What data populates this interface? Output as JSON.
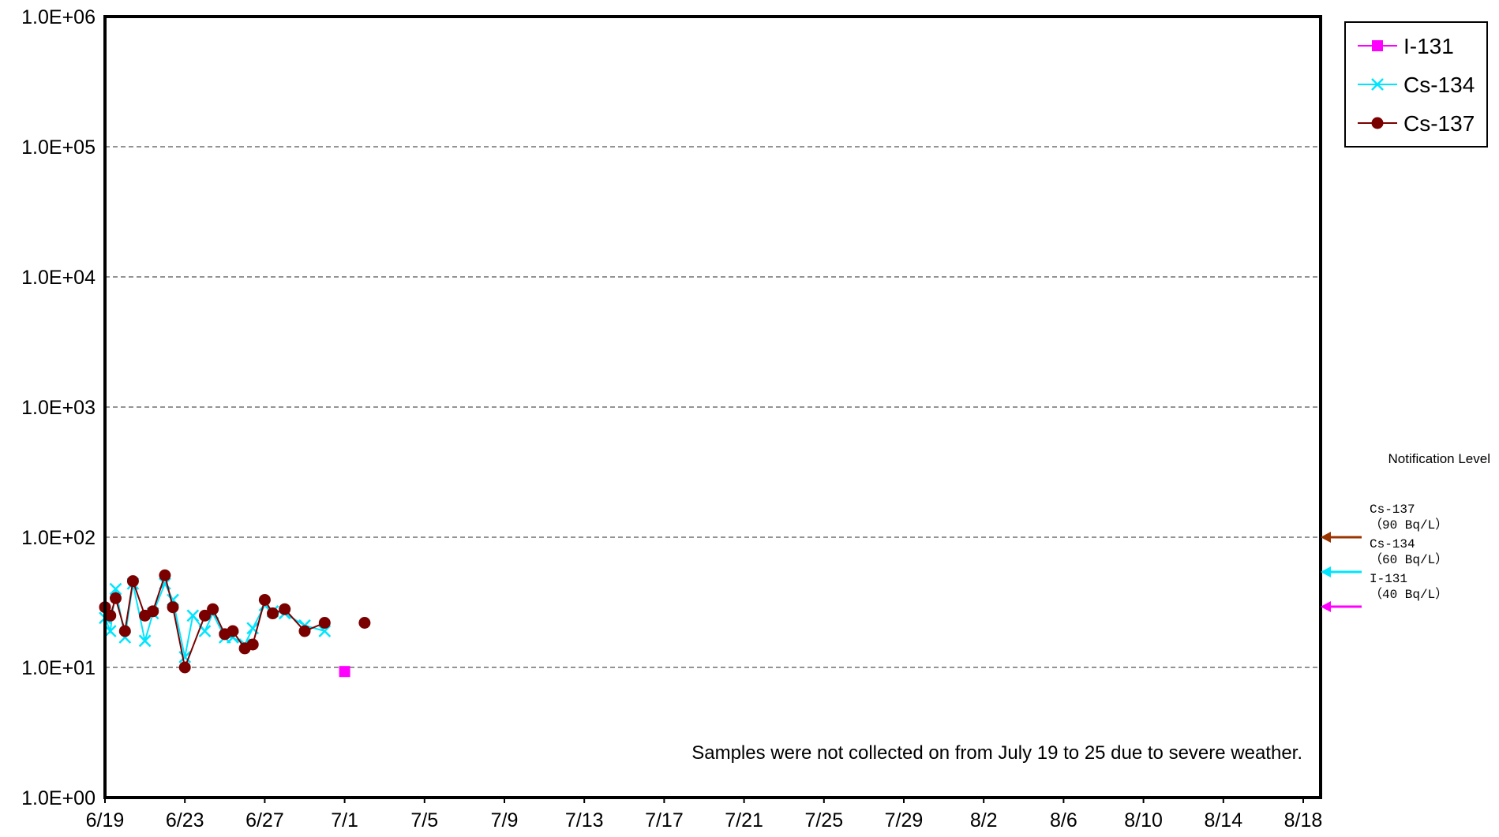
{
  "chart_data": {
    "type": "line",
    "title": "",
    "xlabel": "",
    "ylabel": "",
    "y_scale": "log",
    "ylim": [
      1,
      1000000
    ],
    "y_ticks": [
      1,
      10,
      100,
      1000,
      10000,
      100000,
      1000000
    ],
    "y_tick_labels": [
      "1.0E+00",
      "1.0E+01",
      "1.0E+02",
      "1.0E+03",
      "1.0E+04",
      "1.0E+05",
      "1.0E+06"
    ],
    "xlim": [
      "6/19",
      "8/19"
    ],
    "x_tick_labels": [
      "6/19",
      "6/23",
      "6/27",
      "7/1",
      "7/5",
      "7/9",
      "7/13",
      "7/17",
      "7/21",
      "7/25",
      "7/29",
      "8/2",
      "8/6",
      "8/10",
      "8/14",
      "8/18"
    ],
    "grid": "horizontal dashed",
    "legend_position": "top-right outside",
    "series": [
      {
        "name": "I-131",
        "color": "#ff00ff",
        "marker": "square",
        "connected": false,
        "points": [
          {
            "x": "7/1",
            "y": 9.3
          }
        ]
      },
      {
        "name": "Cs-134",
        "color": "#00e5ff",
        "marker": "x",
        "connected": true,
        "points": [
          {
            "x": "6/19",
            "y": 24
          },
          {
            "x": "6/19",
            "y": 19
          },
          {
            "x": "6/19",
            "y": 40
          },
          {
            "x": "6/20",
            "y": 17
          },
          {
            "x": "6/20",
            "y": 44
          },
          {
            "x": "6/21",
            "y": 16
          },
          {
            "x": "6/21",
            "y": 26
          },
          {
            "x": "6/22",
            "y": 44
          },
          {
            "x": "6/22",
            "y": 33
          },
          {
            "x": "6/23",
            "y": 12
          },
          {
            "x": "6/23",
            "y": 25
          },
          {
            "x": "6/24",
            "y": 19
          },
          {
            "x": "6/24",
            "y": 26
          },
          {
            "x": "6/25",
            "y": 17
          },
          {
            "x": "6/25",
            "y": 17
          },
          {
            "x": "6/26",
            "y": 15
          },
          {
            "x": "6/26",
            "y": 20
          },
          {
            "x": "6/27",
            "y": 30
          },
          {
            "x": "6/27",
            "y": 27
          },
          {
            "x": "6/28",
            "y": 26
          },
          {
            "x": "6/29",
            "y": 21
          },
          {
            "x": "6/30",
            "y": 19
          }
        ]
      },
      {
        "name": "Cs-137",
        "color": "#7a0000",
        "marker": "circle",
        "connected": true,
        "points": [
          {
            "x": "6/19",
            "y": 29
          },
          {
            "x": "6/19",
            "y": 25
          },
          {
            "x": "6/19",
            "y": 34
          },
          {
            "x": "6/20",
            "y": 19
          },
          {
            "x": "6/20",
            "y": 46
          },
          {
            "x": "6/21",
            "y": 25
          },
          {
            "x": "6/21",
            "y": 27
          },
          {
            "x": "6/22",
            "y": 51
          },
          {
            "x": "6/22",
            "y": 29
          },
          {
            "x": "6/23",
            "y": 10
          },
          {
            "x": "6/24",
            "y": 25
          },
          {
            "x": "6/24",
            "y": 28
          },
          {
            "x": "6/25",
            "y": 18
          },
          {
            "x": "6/25",
            "y": 19
          },
          {
            "x": "6/26",
            "y": 14
          },
          {
            "x": "6/26",
            "y": 15
          },
          {
            "x": "6/27",
            "y": 33
          },
          {
            "x": "6/27",
            "y": 26
          },
          {
            "x": "6/28",
            "y": 28
          },
          {
            "x": "6/29",
            "y": 19
          },
          {
            "x": "6/30",
            "y": 22
          }
        ],
        "isolated_points": [
          {
            "x": "7/2",
            "y": 22
          }
        ]
      }
    ],
    "annotations": [
      "Samples were not collected on  from July 19 to 25 due to severe weather."
    ],
    "notification_level": {
      "title": "Notification Level",
      "items": [
        {
          "nuclide": "Cs-137",
          "value": "（90  Bq/L）",
          "level": 90,
          "color": "#993300"
        },
        {
          "nuclide": "Cs-134",
          "value": "（60  Bq/L）",
          "level": 60,
          "color": "#00e5ff"
        },
        {
          "nuclide": "I-131",
          "value": "（40  Bq/L）",
          "level": 40,
          "color": "#ff00ff"
        }
      ]
    }
  }
}
